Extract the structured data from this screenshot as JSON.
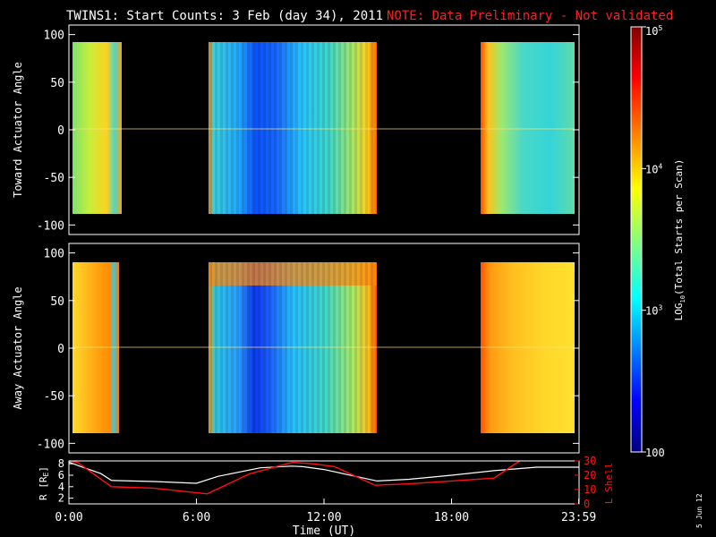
{
  "title": "TWINS1: Start Counts:  3 Feb (day  34), 2011",
  "note": "NOTE: Data Preliminary - Not validated",
  "date_stamp": "5 Jun 12",
  "colors": {
    "background": "#000000",
    "axes": "#ffffff",
    "note": "#ff2020",
    "r_line": "#ffffff",
    "lshell_line": "#ff1010"
  },
  "chart_data": [
    {
      "type": "heatmap",
      "panel": "top",
      "ylabel": "Toward Actuator Angle",
      "ylim": [
        -110,
        110
      ],
      "yticks": [
        -100,
        -50,
        0,
        50,
        100
      ],
      "data_y_range": [
        -88,
        90
      ],
      "x_hours": [
        0,
        24
      ],
      "data_intervals_hours": [
        [
          0.2,
          2.1
        ],
        [
          6.5,
          14.5
        ],
        [
          19.5,
          23.8
        ]
      ],
      "color_scale": "log10 total starts per scan, 100 to 1e5"
    },
    {
      "type": "heatmap",
      "panel": "middle",
      "ylabel": "Away Actuator Angle",
      "ylim": [
        -110,
        110
      ],
      "yticks": [
        -100,
        -50,
        0,
        50,
        100
      ],
      "data_y_range": [
        -88,
        90
      ],
      "x_hours": [
        0,
        24
      ],
      "data_intervals_hours": [
        [
          0.2,
          2.1
        ],
        [
          6.5,
          14.5
        ],
        [
          19.5,
          23.8
        ]
      ],
      "color_scale": "log10 total starts per scan, 100 to 1e5"
    },
    {
      "type": "line",
      "panel": "bottom",
      "xlabel": "Time (UT)",
      "xlim": [
        0,
        24
      ],
      "xticks": [
        0,
        6,
        12,
        18,
        23.983
      ],
      "xtick_labels": [
        "0:00",
        "6:00",
        "12:00",
        "18:00",
        "23:59"
      ],
      "ylabel_left": "R [R",
      "ylabel_left_sub": "E",
      "ylabel_left_close": "]",
      "ylim_left": [
        1,
        8.5
      ],
      "yticks_left": [
        2,
        4,
        6,
        8
      ],
      "ylabel_right": "L Shell",
      "ylim_right": [
        0,
        30
      ],
      "yticks_right": [
        0,
        10,
        20,
        30
      ],
      "series": [
        {
          "name": "R [RE]",
          "axis": "left",
          "x": [
            0,
            0.5,
            1.5,
            2.0,
            4.0,
            6.0,
            7.0,
            9.0,
            10.5,
            11.0,
            12.0,
            13.5,
            14.5,
            16.0,
            18.0,
            20.0,
            22.0,
            24.0
          ],
          "y": [
            8.3,
            7.6,
            6.3,
            5.1,
            4.9,
            4.6,
            5.8,
            7.3,
            7.6,
            7.5,
            7.0,
            5.8,
            5.0,
            5.3,
            6.0,
            6.8,
            7.4,
            7.4
          ]
        },
        {
          "name": "L Shell",
          "axis": "right",
          "x": [
            0,
            0.4,
            2.0,
            4.0,
            6.5,
            8.5,
            10.5,
            11.5,
            12.5,
            14.4,
            16.0,
            18.0,
            20.0,
            21.2
          ],
          "y": [
            31,
            29,
            12,
            11,
            7,
            21,
            29,
            28,
            26,
            13,
            14,
            16,
            18,
            31
          ]
        }
      ]
    },
    {
      "type": "heatmap",
      "panel": "colorbar",
      "label_prefix": "LOG",
      "label_sub": "10",
      "label_suffix": "(Total Starts per Scan)",
      "tick_labels": [
        {
          "value": 100,
          "base": "100",
          "exp": ""
        },
        {
          "value": 1000,
          "base": "10",
          "exp": "3"
        },
        {
          "value": 10000,
          "base": "10",
          "exp": "4"
        },
        {
          "value": 100000,
          "base": "10",
          "exp": "5"
        }
      ],
      "range": [
        100,
        100000
      ]
    }
  ]
}
